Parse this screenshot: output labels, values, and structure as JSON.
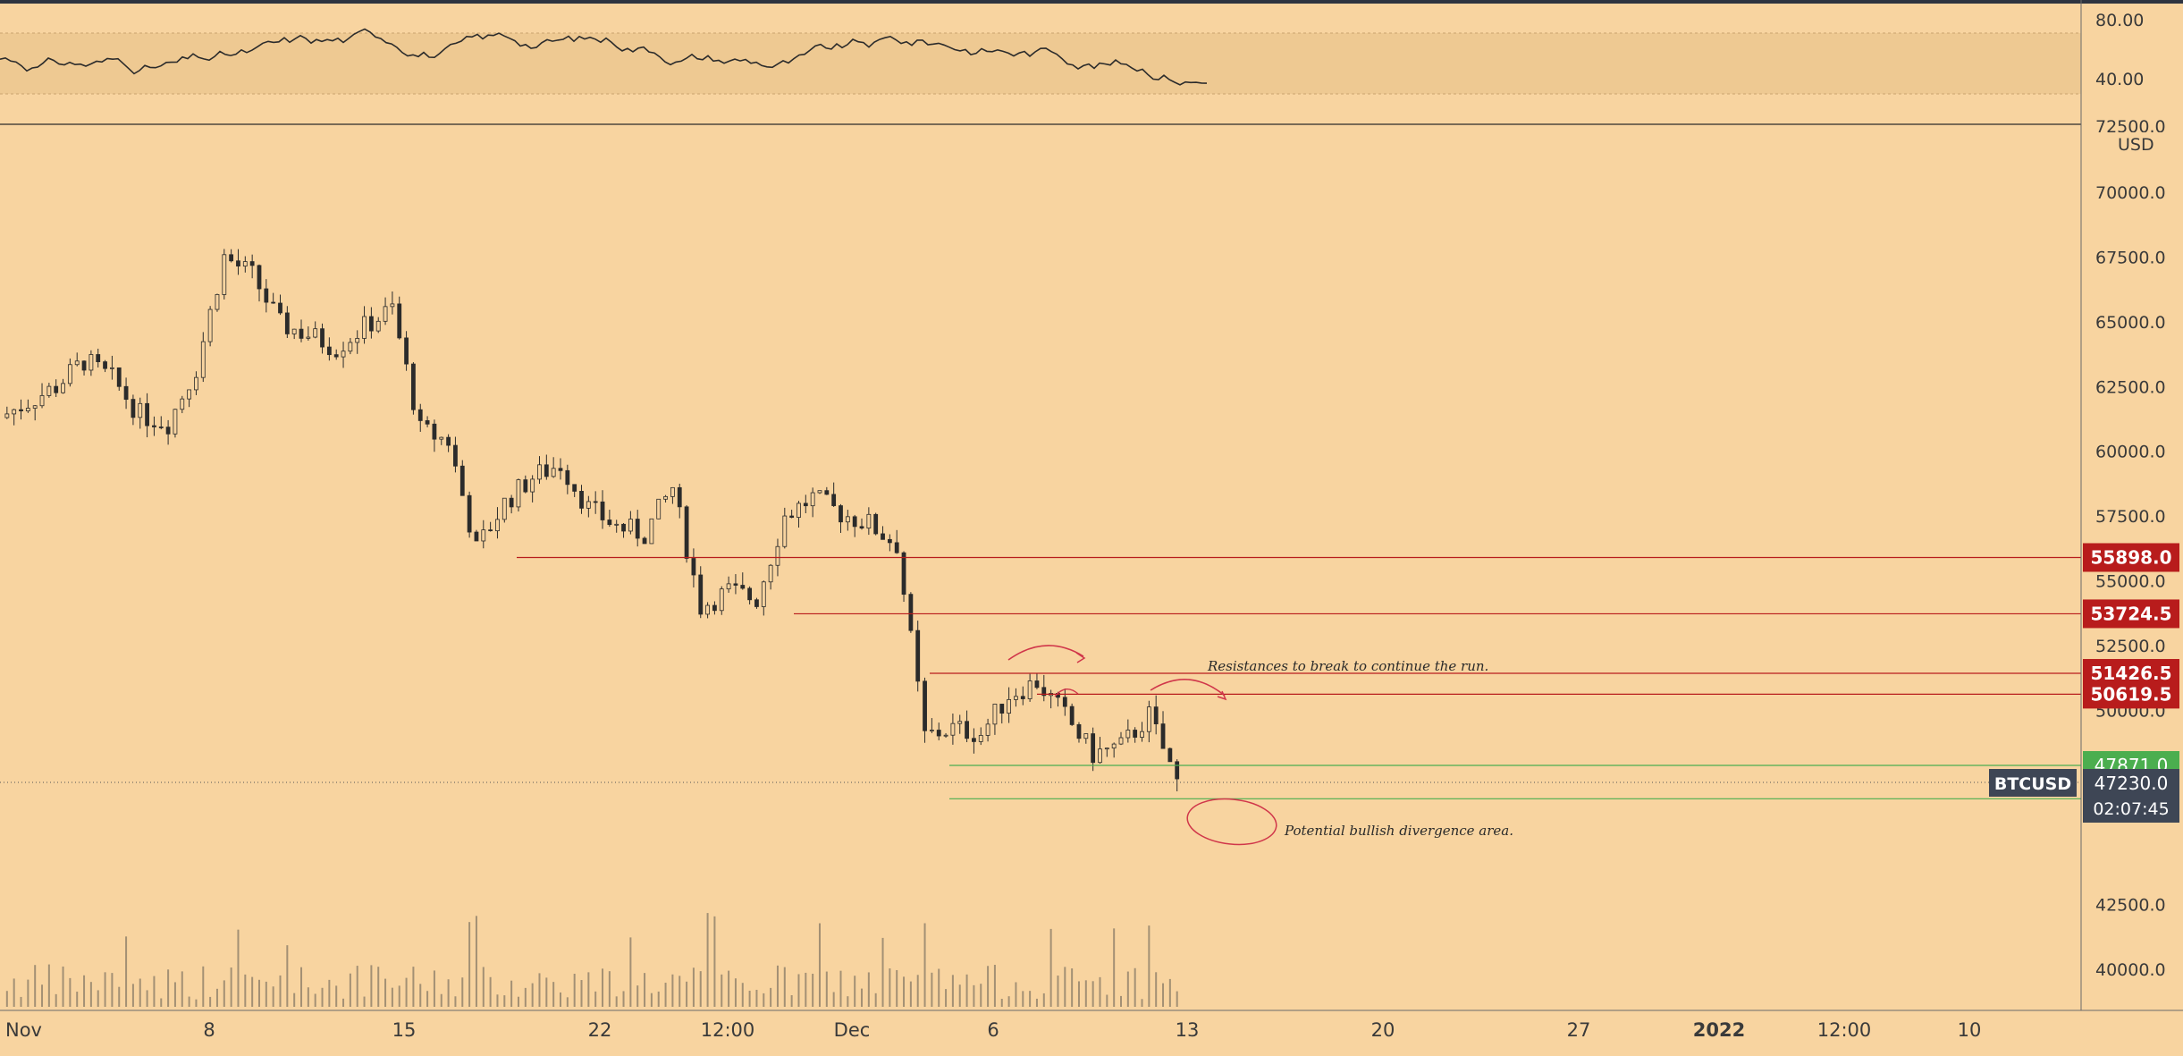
{
  "colors": {
    "background": "#f8d4a0",
    "candle": "#2b2b2b",
    "resistance": "#b81c1c",
    "support": "#4bae4f",
    "price_label": "#3e4655",
    "axis_text": "#3a3a3a",
    "annotation_ink": "#d0364a",
    "rsi_band": "#ebc58f"
  },
  "toolbar": {
    "top_bar": ""
  },
  "rsi_panel": {
    "ticks": [
      "80.00",
      "40.00"
    ]
  },
  "price_axis": {
    "unit": "USD",
    "partial_top_label": "72500.0",
    "ticks": [
      "70000.0",
      "67500.0",
      "65000.0",
      "62500.0",
      "60000.0",
      "57500.0",
      "55000.0",
      "52500.0",
      "50000.0",
      "42500.0",
      "40000.0"
    ],
    "tick_values": [
      70000,
      67500,
      65000,
      62500,
      60000,
      57500,
      55000,
      52500,
      50000,
      42500,
      40000
    ]
  },
  "time_axis": {
    "labels": [
      "Nov",
      "8",
      "15",
      "22",
      "12:00",
      "Dec",
      "6",
      "13",
      "20",
      "27",
      "2022",
      "12:00",
      "10"
    ]
  },
  "levels": [
    {
      "value": 55898.0,
      "label": "55898.0",
      "kind": "resistance"
    },
    {
      "value": 53724.5,
      "label": "53724.5",
      "kind": "resistance"
    },
    {
      "value": 51426.5,
      "label": "51426.5",
      "kind": "resistance"
    },
    {
      "value": 50619.5,
      "label": "50619.5",
      "kind": "resistance"
    },
    {
      "value": 47871.0,
      "label": "47871.0",
      "kind": "support"
    },
    {
      "value": 46582.5,
      "label": "46582.5",
      "kind": "support"
    }
  ],
  "current_price": {
    "symbol": "BTCUSD",
    "value": 47230.0,
    "label": "47230.0",
    "countdown": "02:07:45"
  },
  "annotations": {
    "resistance_note": "Resistances to break to continue the run.",
    "support_note": "Potential bullish divergence area."
  },
  "chart_data": {
    "type": "candlestick",
    "symbol": "BTCUSD",
    "unit": "USD",
    "x_labels": [
      "Nov",
      "8",
      "15",
      "22",
      "12:00",
      "Dec",
      "6",
      "13",
      "20",
      "27",
      "2022",
      "12:00",
      "10"
    ],
    "ylim": [
      38900,
      72500
    ],
    "price_path": [
      {
        "date": "2021-11-01",
        "close": 61300
      },
      {
        "date": "2021-11-03",
        "close": 62500
      },
      {
        "date": "2021-11-04",
        "close": 63500
      },
      {
        "date": "2021-11-05",
        "close": 62800
      },
      {
        "date": "2021-11-06",
        "close": 61400
      },
      {
        "date": "2021-11-07",
        "close": 61100
      },
      {
        "date": "2021-11-08",
        "close": 63200
      },
      {
        "date": "2021-11-09",
        "close": 67500
      },
      {
        "date": "2021-11-10",
        "close": 66800
      },
      {
        "date": "2021-11-11",
        "close": 64900
      },
      {
        "date": "2021-11-12",
        "close": 64500
      },
      {
        "date": "2021-11-13",
        "close": 64000
      },
      {
        "date": "2021-11-14",
        "close": 64800
      },
      {
        "date": "2021-11-15",
        "close": 65500
      },
      {
        "date": "2021-11-16",
        "close": 60800
      },
      {
        "date": "2021-11-17",
        "close": 60400
      },
      {
        "date": "2021-11-18",
        "close": 56200
      },
      {
        "date": "2021-11-19",
        "close": 58000
      },
      {
        "date": "2021-11-20",
        "close": 59000
      },
      {
        "date": "2021-11-21",
        "close": 59500
      },
      {
        "date": "2021-11-22",
        "close": 57800
      },
      {
        "date": "2021-11-23",
        "close": 57100
      },
      {
        "date": "2021-11-24",
        "close": 56800
      },
      {
        "date": "2021-11-25",
        "close": 58600
      },
      {
        "date": "2021-11-26",
        "close": 54000
      },
      {
        "date": "2021-11-27",
        "close": 54600
      },
      {
        "date": "2021-11-28",
        "close": 54300
      },
      {
        "date": "2021-11-29",
        "close": 57500
      },
      {
        "date": "2021-11-30",
        "close": 58200
      },
      {
        "date": "2021-12-01",
        "close": 57600
      },
      {
        "date": "2021-12-02",
        "close": 57200
      },
      {
        "date": "2021-12-03",
        "close": 56400
      },
      {
        "date": "2021-12-04",
        "close": 49000
      },
      {
        "date": "2021-12-05",
        "close": 49300
      },
      {
        "date": "2021-12-06",
        "close": 49100
      },
      {
        "date": "2021-12-07",
        "close": 50600
      },
      {
        "date": "2021-12-08",
        "close": 51100
      },
      {
        "date": "2021-12-09",
        "close": 49800
      },
      {
        "date": "2021-12-10",
        "close": 48300
      },
      {
        "date": "2021-12-11",
        "close": 48600
      },
      {
        "date": "2021-12-12",
        "close": 49800
      },
      {
        "date": "2021-12-13",
        "close": 47230
      }
    ],
    "levels": [
      55898.0,
      53724.5,
      51426.5,
      50619.5,
      47871.0,
      46582.5
    ],
    "current": 47230.0,
    "rsi_axis": [
      "80.00",
      "40.00"
    ]
  }
}
